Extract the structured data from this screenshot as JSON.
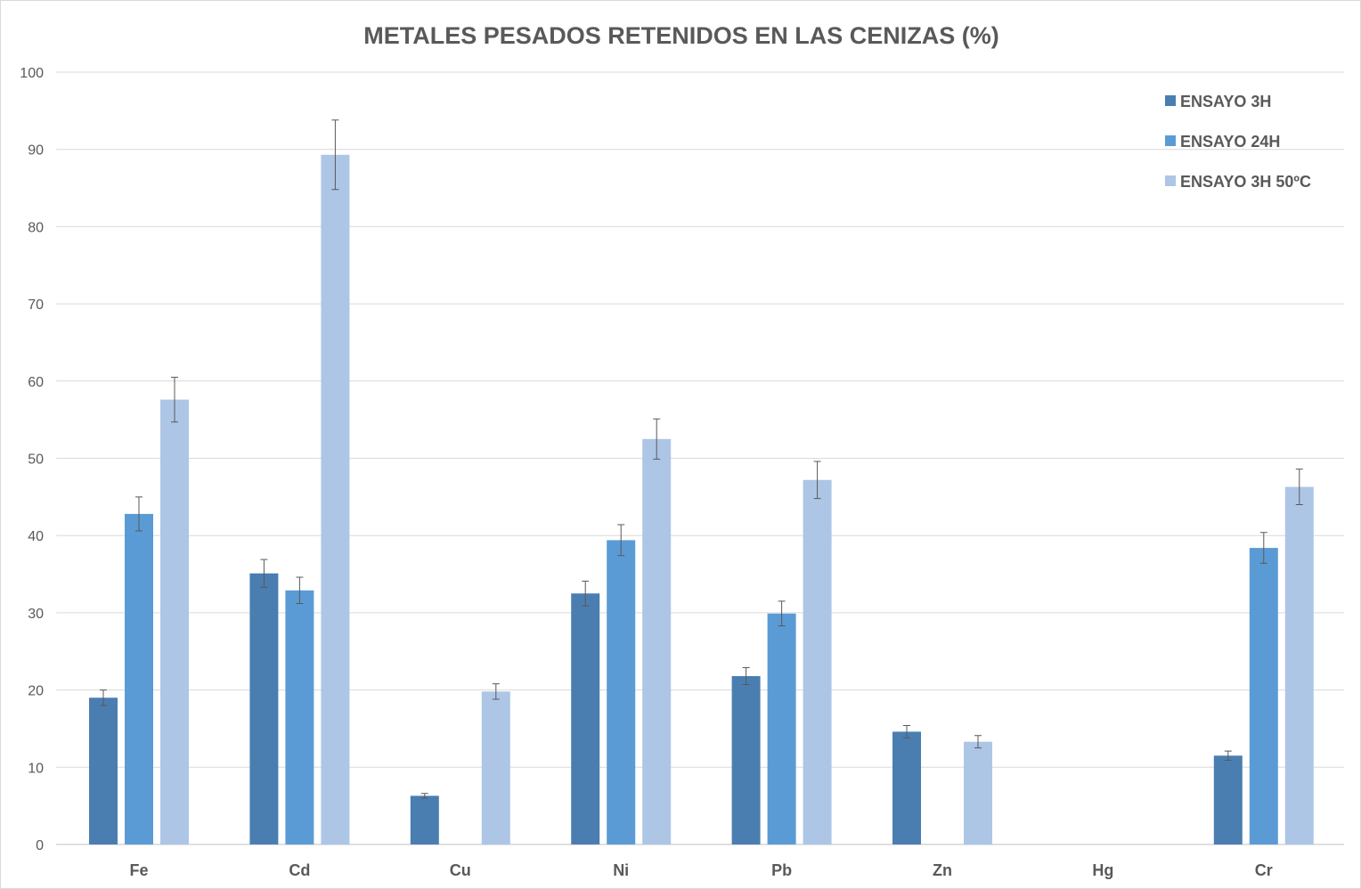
{
  "chart_data": {
    "type": "bar",
    "title": "METALES PESADOS RETENIDOS EN LAS CENIZAS (%)",
    "xlabel": "",
    "ylabel": "",
    "ylim": [
      0,
      100
    ],
    "yticks": [
      0,
      10,
      20,
      30,
      40,
      50,
      60,
      70,
      80,
      90,
      100
    ],
    "grid": true,
    "legend_position": "top-right",
    "categories": [
      "Fe",
      "Cd",
      "Cu",
      "Ni",
      "Pb",
      "Zn",
      "Hg",
      "Cr"
    ],
    "series": [
      {
        "name": "ENSAYO 3H",
        "color": "#4a7eb1",
        "values": [
          19.0,
          35.1,
          6.3,
          32.5,
          21.8,
          14.6,
          null,
          11.5
        ],
        "errors": [
          1.0,
          1.8,
          0.3,
          1.6,
          1.1,
          0.8,
          null,
          0.6
        ]
      },
      {
        "name": "ENSAYO 24H",
        "color": "#5b9bd5",
        "values": [
          42.8,
          32.9,
          null,
          39.4,
          29.9,
          null,
          null,
          38.4
        ],
        "errors": [
          2.2,
          1.7,
          null,
          2.0,
          1.6,
          null,
          null,
          2.0
        ]
      },
      {
        "name": "ENSAYO 3H 50ºC",
        "color": "#adc6e6",
        "values": [
          57.6,
          89.3,
          19.8,
          52.5,
          47.2,
          13.3,
          null,
          46.3
        ],
        "errors": [
          2.9,
          4.5,
          1.0,
          2.6,
          2.4,
          0.8,
          null,
          2.3
        ]
      }
    ]
  }
}
